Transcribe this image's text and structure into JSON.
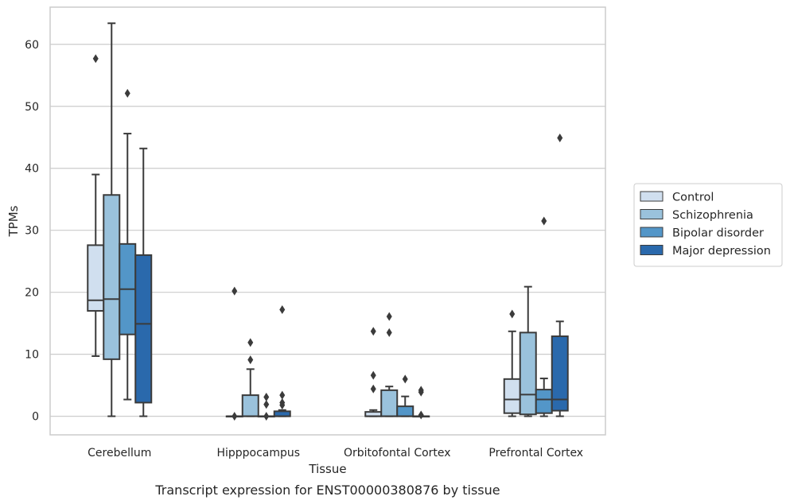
{
  "chart_data": {
    "type": "box",
    "caption": "Transcript expression for ENST00000380876 by tissue",
    "xlabel": "Tissue",
    "ylabel": "TPMs",
    "ylim": [
      -3,
      66
    ],
    "yticks": [
      0,
      10,
      20,
      30,
      40,
      50,
      60
    ],
    "grid": "horizontal",
    "legend_position": "right",
    "categories": [
      "Cerebellum",
      "Hipppocampus",
      "Orbitofontal Cortex",
      "Prefrontal Cortex"
    ],
    "series": [
      {
        "name": "Control",
        "color": "#d0dfef",
        "boxes": [
          {
            "q1": 17.0,
            "median": 18.7,
            "q3": 27.6,
            "whisker_low": 9.7,
            "whisker_high": 39.0,
            "outliers": [
              57.7
            ]
          },
          {
            "q1": 0.0,
            "median": 0.0,
            "q3": 0.0,
            "whisker_low": 0.0,
            "whisker_high": 0.0,
            "outliers": [
              20.2,
              0.0
            ]
          },
          {
            "q1": 0.0,
            "median": 0.0,
            "q3": 0.7,
            "whisker_low": 0.0,
            "whisker_high": 1.0,
            "outliers": [
              13.7,
              6.6,
              4.4
            ]
          },
          {
            "q1": 0.5,
            "median": 2.7,
            "q3": 6.0,
            "whisker_low": 0.0,
            "whisker_high": 13.7,
            "outliers": [
              16.5
            ]
          }
        ]
      },
      {
        "name": "Schizophrenia",
        "color": "#9ac2dc",
        "boxes": [
          {
            "q1": 9.2,
            "median": 18.9,
            "q3": 35.7,
            "whisker_low": 0.0,
            "whisker_high": 63.4,
            "outliers": []
          },
          {
            "q1": 0.0,
            "median": 0.0,
            "q3": 3.4,
            "whisker_low": 0.0,
            "whisker_high": 7.6,
            "outliers": [
              11.9,
              9.1
            ]
          },
          {
            "q1": 0.0,
            "median": 0.0,
            "q3": 4.2,
            "whisker_low": 0.0,
            "whisker_high": 4.8,
            "outliers": [
              16.1,
              13.5
            ]
          },
          {
            "q1": 0.3,
            "median": 3.5,
            "q3": 13.5,
            "whisker_low": 0.0,
            "whisker_high": 20.9,
            "outliers": []
          }
        ]
      },
      {
        "name": "Bipolar disorder",
        "color": "#5396c8",
        "boxes": [
          {
            "q1": 13.2,
            "median": 20.5,
            "q3": 27.8,
            "whisker_low": 2.7,
            "whisker_high": 45.6,
            "outliers": [
              52.1
            ]
          },
          {
            "q1": 0.0,
            "median": 0.0,
            "q3": 0.0,
            "whisker_low": 0.0,
            "whisker_high": 0.0,
            "outliers": [
              3.1,
              1.9,
              0.0
            ]
          },
          {
            "q1": 0.0,
            "median": 0.0,
            "q3": 1.6,
            "whisker_low": 0.0,
            "whisker_high": 3.2,
            "outliers": [
              6.0
            ]
          },
          {
            "q1": 0.5,
            "median": 2.7,
            "q3": 4.3,
            "whisker_low": 0.0,
            "whisker_high": 6.1,
            "outliers": [
              31.5
            ]
          }
        ]
      },
      {
        "name": "Major depression",
        "color": "#2a69ac",
        "boxes": [
          {
            "q1": 2.2,
            "median": 14.9,
            "q3": 26.0,
            "whisker_low": 0.0,
            "whisker_high": 43.2,
            "outliers": []
          },
          {
            "q1": 0.0,
            "median": 0.0,
            "q3": 0.8,
            "whisker_low": 0.0,
            "whisker_high": 1.0,
            "outliers": [
              17.2,
              3.4,
              2.2,
              1.8
            ]
          },
          {
            "q1": 0.0,
            "median": 0.0,
            "q3": 0.0,
            "whisker_low": 0.0,
            "whisker_high": 0.0,
            "outliers": [
              4.2,
              3.9,
              0.2
            ]
          },
          {
            "q1": 0.9,
            "median": 2.7,
            "q3": 12.9,
            "whisker_low": 0.0,
            "whisker_high": 15.3,
            "outliers": [
              44.9
            ]
          }
        ]
      }
    ]
  }
}
